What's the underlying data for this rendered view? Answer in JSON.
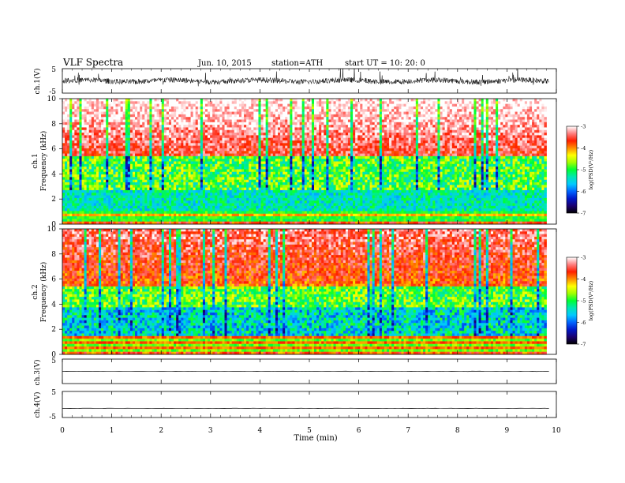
{
  "header": {
    "title": "VLF  Spectra",
    "date": "Jun. 10, 2015",
    "station": "station=ATH",
    "start": "start  UT  =   10: 20: 0"
  },
  "colors": {
    "spectrum_stops": [
      "#000000",
      "#1a0070",
      "#0018c8",
      "#0064ff",
      "#00c8ff",
      "#00e6b4",
      "#00ff32",
      "#a0ff00",
      "#ffff00",
      "#ff8c00",
      "#ff1e00",
      "#ff8080",
      "#ffffff"
    ],
    "trace": "#000000"
  },
  "chart_data": [
    {
      "type": "line",
      "name": "ch1-waveform",
      "ylabel": "ch.1(V)",
      "ylim": [
        -5,
        5
      ],
      "yticks": [
        "5",
        "-5"
      ],
      "xlim": [
        0,
        10
      ],
      "noise_level_v": 1.1
    },
    {
      "type": "heatmap",
      "name": "ch1-spectrogram",
      "ylabel_1": "ch.1",
      "ylabel_2": "Frequency  (kHz)",
      "ylim": [
        0,
        10
      ],
      "yticks": [
        "0",
        "2",
        "4",
        "6",
        "8",
        "10"
      ],
      "xlim": [
        0,
        9.8
      ],
      "colorbar": {
        "label": "log(PSD(V²/Hz)",
        "range": [
          -7,
          -3
        ],
        "ticks": [
          "-3",
          "-4",
          "-5",
          "-6",
          "-7"
        ]
      }
    },
    {
      "type": "heatmap",
      "name": "ch2-spectrogram",
      "ylabel_1": "ch.2",
      "ylabel_2": "Frequency  (kHz)",
      "ylim": [
        0,
        10
      ],
      "yticks": [
        "0",
        "2",
        "4",
        "6",
        "8",
        "10"
      ],
      "xlim": [
        0,
        9.8
      ],
      "colorbar": {
        "label": "log(PSD(V²/Hz)",
        "range": [
          -7,
          -3
        ],
        "ticks": [
          "-3",
          "-4",
          "-5",
          "-6",
          "-7"
        ]
      }
    },
    {
      "type": "line",
      "name": "ch3-waveform",
      "ylabel": "ch.3(V)",
      "ylim": [
        -5,
        5
      ],
      "yticks": [
        "5"
      ],
      "xlim": [
        0,
        10
      ],
      "level_v": 0
    },
    {
      "type": "line",
      "name": "ch4-waveform",
      "ylabel": "ch.4(V)",
      "ylim": [
        -5,
        5
      ],
      "yticks": [
        "5",
        "-5"
      ],
      "xlim": [
        0,
        10
      ],
      "level_v": -1.5
    }
  ],
  "xaxis": {
    "label": "Time  (min)",
    "ticks": [
      "0",
      "1",
      "2",
      "3",
      "4",
      "5",
      "6",
      "7",
      "8",
      "9",
      "10"
    ],
    "range": [
      0,
      10
    ]
  }
}
